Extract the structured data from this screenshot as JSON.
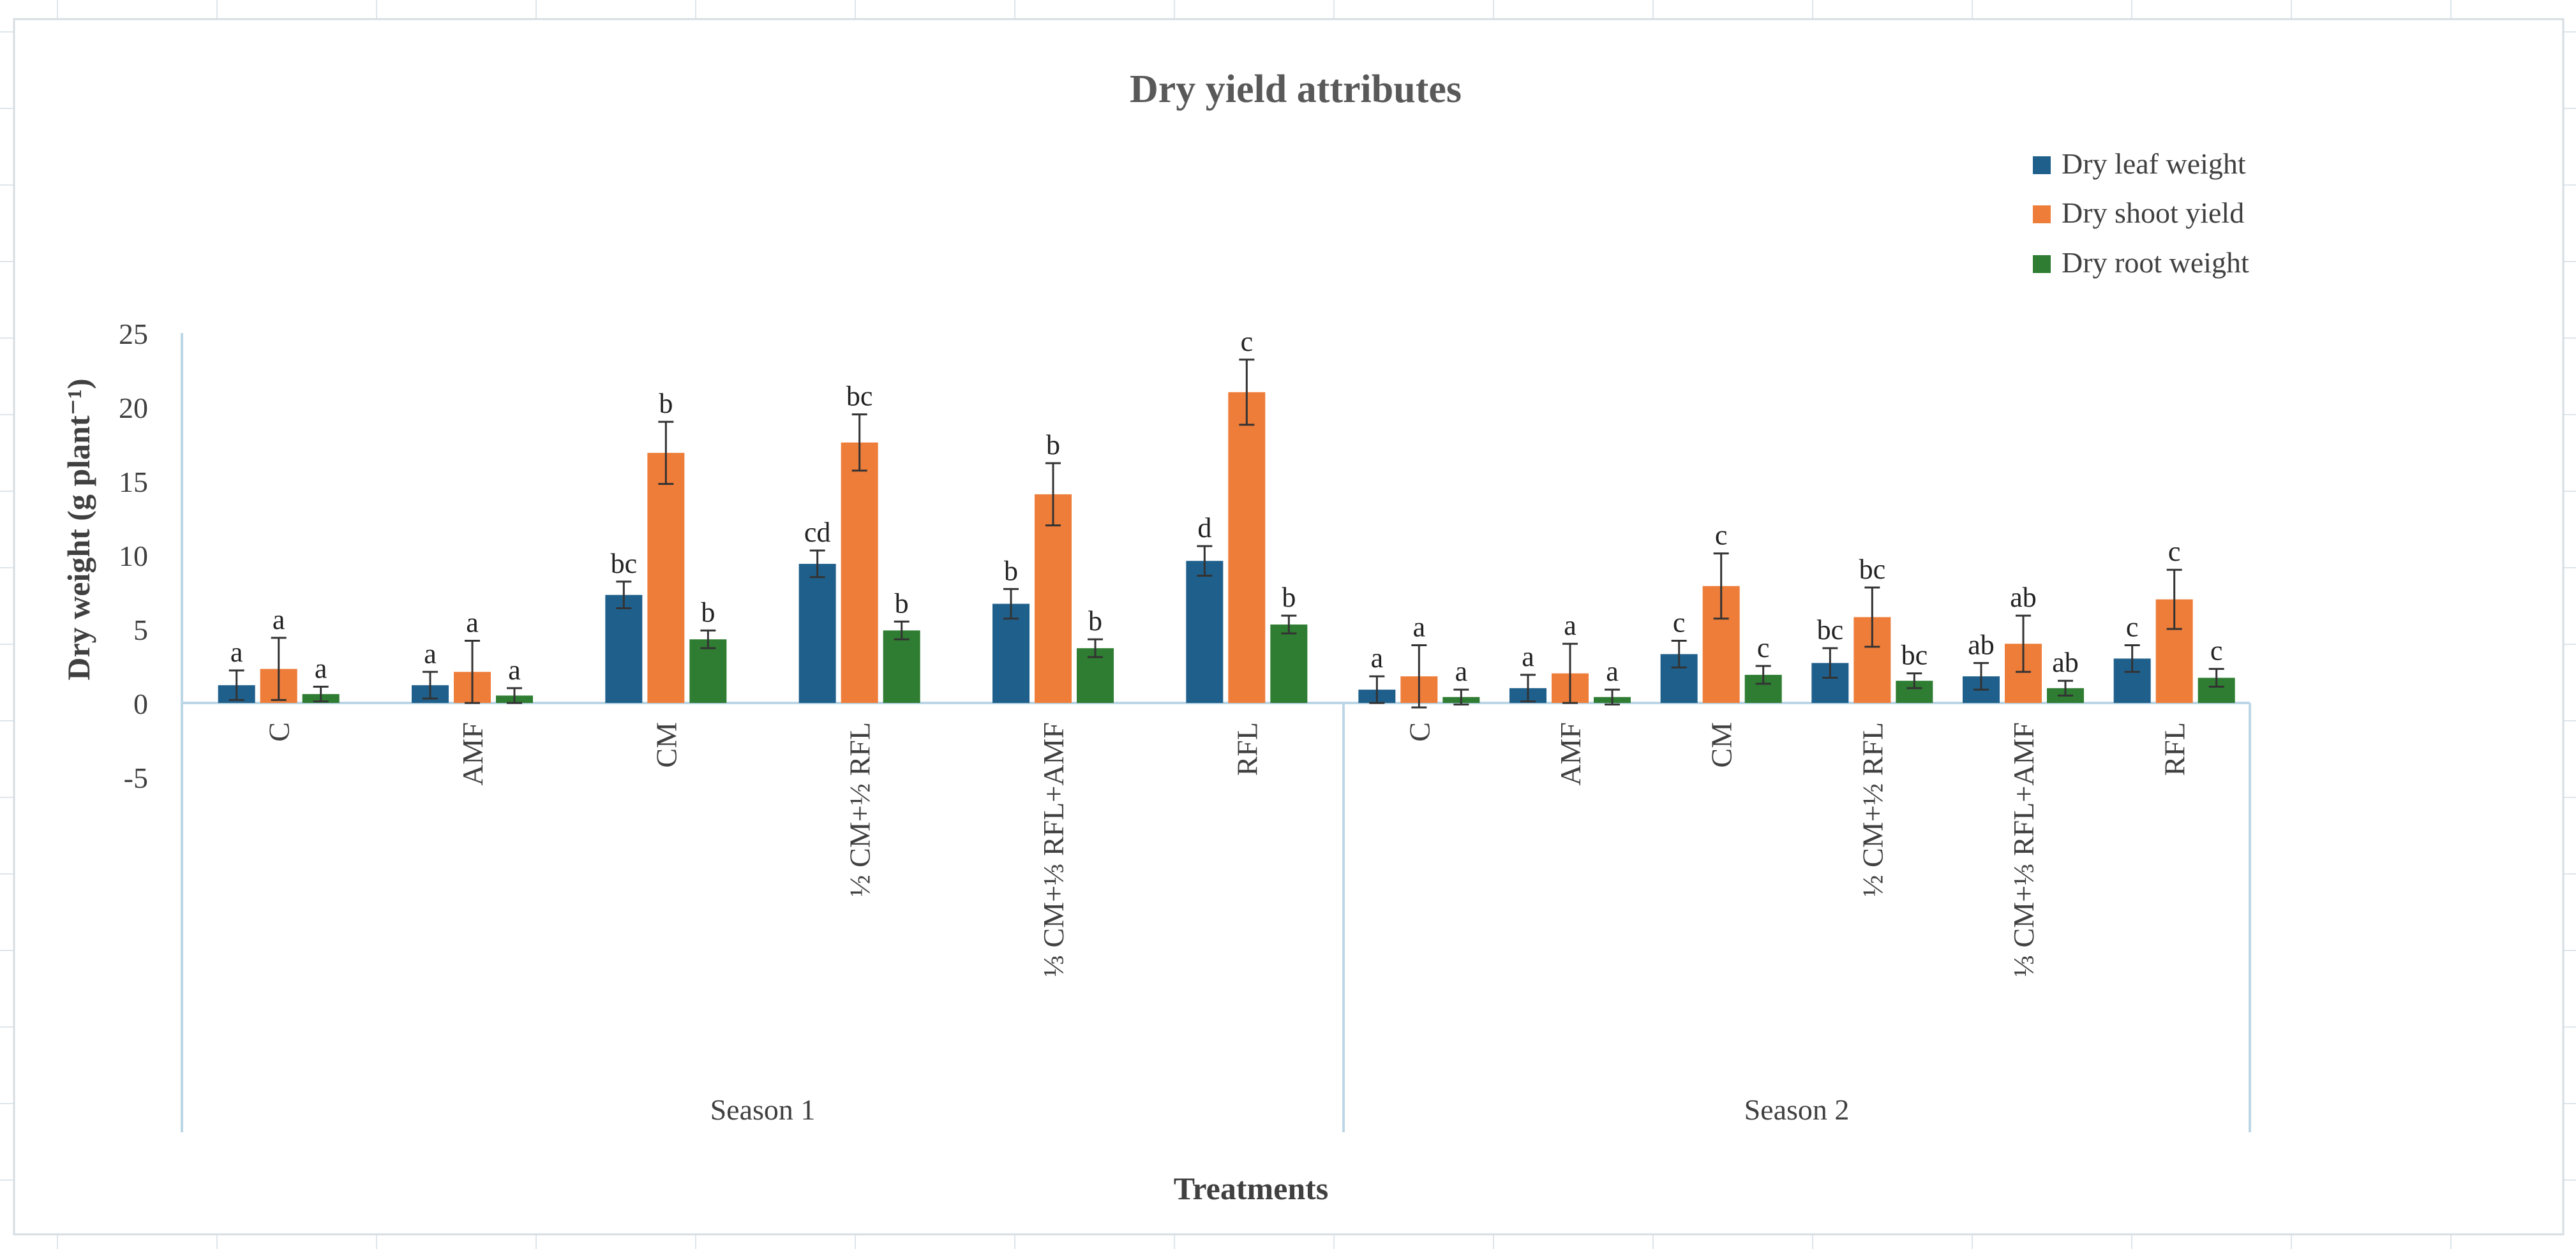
{
  "colors": {
    "leaf": "#1f5f8b",
    "shoot": "#ee7d3a",
    "root": "#2e7d32",
    "axis": "#bcd6e6",
    "sheet_grid": "#dde6ec",
    "text": "#404040"
  },
  "chart_data": {
    "type": "bar",
    "title": "Dry yield attributes",
    "xlabel": "Treatments",
    "ylabel": "Dry weight (g plant⁻¹)",
    "ylim": [
      -5,
      25
    ],
    "yticks": [
      "25",
      "20",
      "15",
      "10",
      "5",
      "0",
      "-5"
    ],
    "grid": false,
    "legend_position": "top-right",
    "groups": [
      {
        "label": "Season 1",
        "categories": [
          "C",
          "AMF",
          "CM",
          "½ CM+½ RFL",
          "⅓ CM+⅓ RFL+AMF",
          "RFL"
        ]
      },
      {
        "label": "Season 2",
        "categories": [
          "C",
          "AMF",
          "CM",
          "½ CM+½ RFL",
          "⅓ CM+⅓ RFL+AMF",
          "RFL"
        ]
      }
    ],
    "series": [
      {
        "name": "Dry leaf weight",
        "values": [
          1.2,
          1.2,
          7.3,
          9.4,
          6.7,
          9.6,
          0.9,
          1.0,
          3.3,
          2.7,
          1.8,
          3.0
        ],
        "errors": [
          1.0,
          0.9,
          0.9,
          0.9,
          1.0,
          1.0,
          0.9,
          0.9,
          0.9,
          1.0,
          0.9,
          0.9
        ],
        "letters": [
          "a",
          "a",
          "bc",
          "cd",
          "b",
          "d",
          "a",
          "a",
          "c",
          "bc",
          "ab",
          "c"
        ]
      },
      {
        "name": "Dry shoot yield",
        "values": [
          2.3,
          2.1,
          16.9,
          17.6,
          14.1,
          21.0,
          1.8,
          2.0,
          7.9,
          5.8,
          4.0,
          7.0
        ],
        "errors": [
          2.1,
          2.1,
          2.1,
          1.9,
          2.1,
          2.2,
          2.1,
          2.0,
          2.2,
          2.0,
          1.9,
          2.0
        ],
        "letters": [
          "a",
          "a",
          "b",
          "bc",
          "b",
          "c",
          "a",
          "a",
          "c",
          "bc",
          "ab",
          "c"
        ]
      },
      {
        "name": "Dry root weight",
        "values": [
          0.6,
          0.5,
          4.3,
          4.9,
          3.7,
          5.3,
          0.4,
          0.4,
          1.9,
          1.5,
          1.0,
          1.7
        ],
        "errors": [
          0.5,
          0.5,
          0.6,
          0.6,
          0.6,
          0.6,
          0.5,
          0.5,
          0.6,
          0.5,
          0.5,
          0.6
        ],
        "letters": [
          "a",
          "a",
          "b",
          "b",
          "b",
          "b",
          "a",
          "a",
          "c",
          "bc",
          "ab",
          "c"
        ]
      }
    ]
  }
}
